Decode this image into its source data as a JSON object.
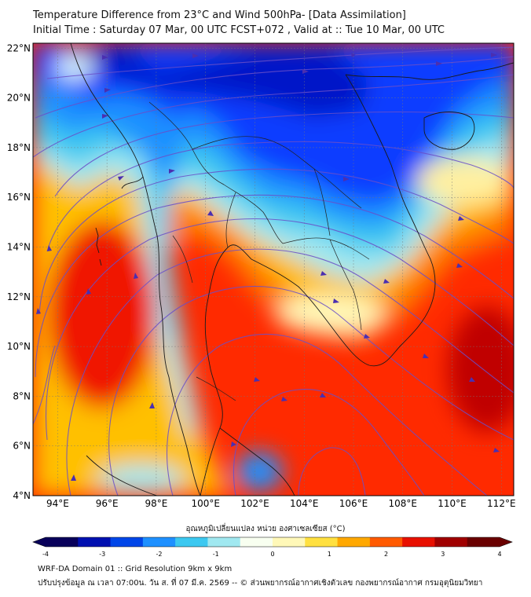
{
  "title": {
    "line1": "Temperature Difference from 23°C and Wind 500hPa- [Data Assimilation]",
    "line2": "Initial Time : Saturday 07 Mar, 00 UTC FCST+072 , Valid at ::  Tue 10 Mar, 00 UTC"
  },
  "axes": {
    "lat_labels": [
      "4°N",
      "6°N",
      "8°N",
      "10°N",
      "12°N",
      "14°N",
      "16°N",
      "18°N",
      "20°N",
      "22°N"
    ],
    "lat_values": [
      4,
      6,
      8,
      10,
      12,
      14,
      16,
      18,
      20,
      22
    ],
    "lon_labels": [
      "94°E",
      "96°E",
      "98°E",
      "100°E",
      "102°E",
      "104°E",
      "106°E",
      "108°E",
      "110°E",
      "112°E"
    ],
    "lon_values": [
      94,
      96,
      98,
      100,
      102,
      104,
      106,
      108,
      110,
      112
    ],
    "lon_range": [
      93,
      112.5
    ],
    "lat_range": [
      4,
      22.2
    ]
  },
  "colorbar": {
    "title": "อุณหภูมิเปลี่ยนแปลง หน่วย องศาเซลเซียส (°C)",
    "tick_labels": [
      "-4",
      "-3",
      "-2",
      "-1",
      "0",
      "1",
      "2",
      "3",
      "4"
    ],
    "tick_values": [
      -4,
      -3,
      -2,
      -1,
      0,
      1,
      2,
      3,
      4
    ],
    "range": [
      -4,
      4
    ],
    "colors": [
      "#08005a",
      "#0010b0",
      "#0046e8",
      "#1e90ff",
      "#3cc8f0",
      "#a0e8f0",
      "#f8fff0",
      "#fff8b8",
      "#ffe040",
      "#ffa800",
      "#ff5a00",
      "#e81000",
      "#a00000",
      "#6a0000"
    ]
  },
  "footer": {
    "line1": "WRF-DA Domain 01 :: Grid Resolution 9km x 9km",
    "line2": "ปรับปรุงข้อมูล ณ เวลา 07:00น. วัน ส. ที่ 07 มี.ค. 2569 -- © ส่วนพยากรณ์อากาศเชิงตัวเลข กองพยากรณ์อากาศ กรมอุตุนิยมวิทยา"
  },
  "colors": {
    "cold": "#0a3cff",
    "cool": "#3cc8f0",
    "neutral": "#f8fff0",
    "warm": "#ffe040",
    "hot": "#ff2a00",
    "streamline": "#6a4fc8",
    "coastline": "#1a1a1a"
  }
}
